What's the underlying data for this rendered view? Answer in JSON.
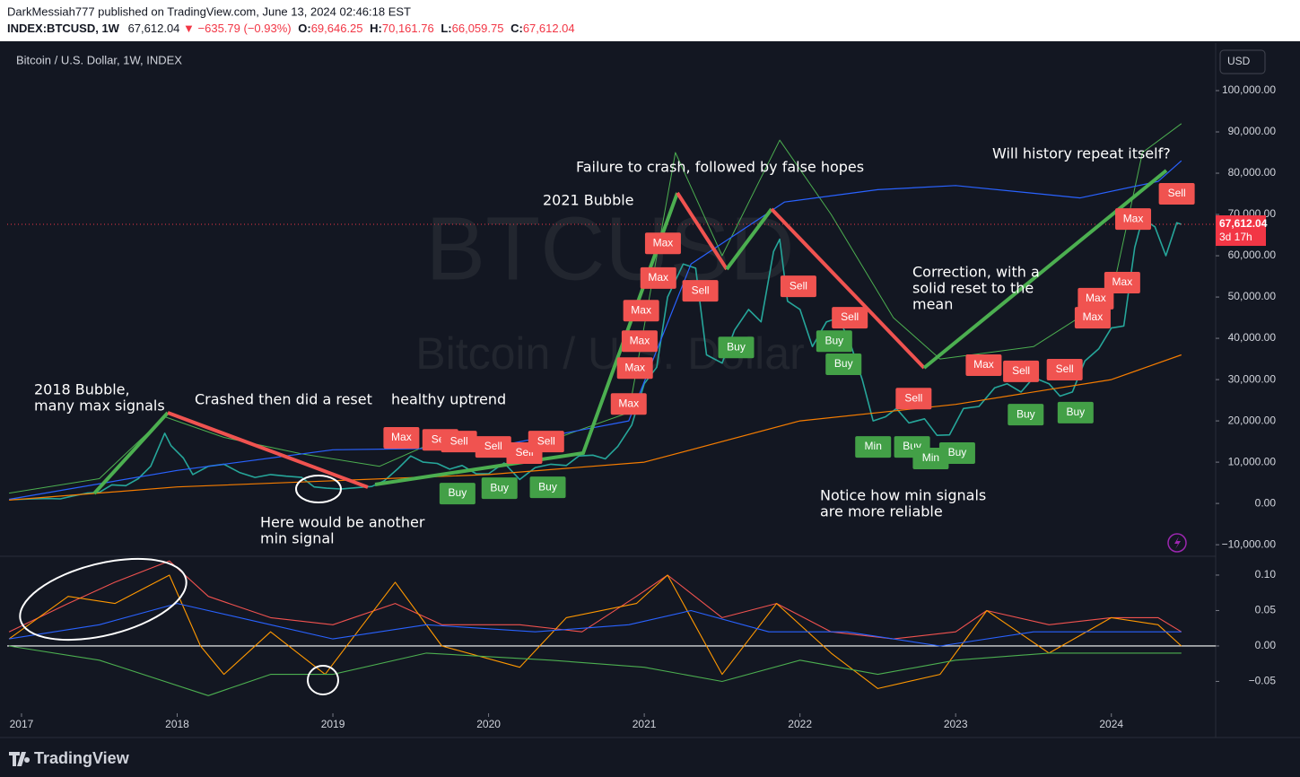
{
  "header": {
    "publisher": "DarkMessiah777 published on TradingView.com, June 13, 2024 02:46:18 EST",
    "symbol": "INDEX:BTCUSD, 1W",
    "last": "67,612.04",
    "change": "▼ −635.79 (−0.93%)",
    "ohlc": [
      {
        "key": "O:",
        "value": "69,646.25"
      },
      {
        "key": "H:",
        "value": "70,161.76"
      },
      {
        "key": "L:",
        "value": "66,059.75"
      },
      {
        "key": "C:",
        "value": "67,612.04"
      }
    ]
  },
  "legend": "Bitcoin / U.S. Dollar, 1W, INDEX",
  "currency": "USD",
  "watermark": {
    "symbol": "BTCUSD",
    "description": "Bitcoin / U.S. Dollar"
  },
  "countdown": "3d 17h",
  "brand": "TradingView",
  "annotations": [
    "2018 Bubble,",
    "many max signals",
    "Crashed then did a reset",
    "healthy uptrend",
    "Here would be another",
    "min signal",
    "2021 Bubble",
    "Failure to crash, followed by false hopes",
    "Correction, with a",
    "solid reset to the",
    "mean",
    "Notice how min signals",
    "are more reliable",
    "Will history repeat itself?"
  ],
  "chart_data": [
    {
      "type": "line",
      "xlim": [
        2016.908,
        2024.67
      ],
      "ylim": [
        -12800,
        110000
      ],
      "yticks": [
        {
          "value": 100000,
          "label": "100,000.00"
        },
        {
          "value": 90000,
          "label": "90,000.00"
        },
        {
          "value": 80000,
          "label": "80,000.00"
        },
        {
          "value": 70000,
          "label": "70,000.00"
        },
        {
          "value": 60000,
          "label": "60,000.00"
        },
        {
          "value": 50000,
          "label": "50,000.00"
        },
        {
          "value": 40000,
          "label": "40,000.00"
        },
        {
          "value": 30000,
          "label": "30,000.00"
        },
        {
          "value": 20000,
          "label": "20,000.00"
        },
        {
          "value": 10000,
          "label": "10,000.00"
        },
        {
          "value": 0,
          "label": "0.00"
        },
        {
          "value": -10000,
          "label": "−10,000.00"
        }
      ],
      "last_price": {
        "value": 67612.04,
        "label": "67,612.04",
        "color": "#f23645"
      },
      "series": [
        {
          "color": "#26a69a",
          "width": 1.6,
          "x": [
            2016.95,
            2017.0,
            2017.08,
            2017.17,
            2017.25,
            2017.33,
            2017.42,
            2017.5,
            2017.58,
            2017.67,
            2017.75,
            2017.83,
            2017.92,
            2017.96,
            2018.04,
            2018.1,
            2018.2,
            2018.3,
            2018.4,
            2018.5,
            2018.6,
            2018.7,
            2018.8,
            2018.88,
            2018.96,
            2019.05,
            2019.15,
            2019.25,
            2019.33,
            2019.42,
            2019.5,
            2019.58,
            2019.67,
            2019.75,
            2019.83,
            2019.92,
            2020.0,
            2020.1,
            2020.2,
            2020.3,
            2020.4,
            2020.5,
            2020.58,
            2020.67,
            2020.75,
            2020.83,
            2020.92,
            2021.0,
            2021.08,
            2021.15,
            2021.25,
            2021.33,
            2021.4,
            2021.5,
            2021.58,
            2021.67,
            2021.75,
            2021.83,
            2021.87,
            2021.92,
            2022.0,
            2022.08,
            2022.17,
            2022.25,
            2022.33,
            2022.4,
            2022.47,
            2022.55,
            2022.62,
            2022.7,
            2022.8,
            2022.88,
            2022.96,
            2023.05,
            2023.15,
            2023.25,
            2023.33,
            2023.42,
            2023.5,
            2023.6,
            2023.67,
            2023.75,
            2023.83,
            2023.92,
            2024.0,
            2024.08,
            2024.15,
            2024.2,
            2024.28,
            2024.35,
            2024.42,
            2024.45
          ],
          "values": [
            950,
            1000,
            1100,
            1200,
            1100,
            1800,
            2500,
            2700,
            4500,
            4300,
            6000,
            9000,
            17000,
            14000,
            11000,
            7000,
            9000,
            9500,
            7500,
            6300,
            7000,
            6600,
            6300,
            4000,
            3700,
            3500,
            3800,
            4100,
            5500,
            8500,
            11500,
            10000,
            9700,
            8300,
            9200,
            7200,
            7200,
            9800,
            5800,
            8700,
            9500,
            9200,
            11500,
            11700,
            10800,
            13800,
            19000,
            29000,
            33000,
            50000,
            58000,
            57000,
            36000,
            34000,
            42000,
            47000,
            44000,
            61000,
            64000,
            49000,
            47000,
            38000,
            44000,
            45000,
            38000,
            30000,
            20000,
            21000,
            23000,
            19500,
            20500,
            16500,
            16600,
            23000,
            23500,
            28000,
            29000,
            27000,
            30500,
            29000,
            26000,
            27000,
            34500,
            37500,
            42500,
            43000,
            62000,
            69000,
            67000,
            60000,
            68000,
            67612.04
          ]
        },
        {
          "color": "#4caf50",
          "width": 1,
          "x": [
            2016.92,
            2017.5,
            2017.92,
            2018.3,
            2018.8,
            2019.3,
            2019.6,
            2020.3,
            2020.9,
            2021.2,
            2021.5,
            2021.87,
            2022.2,
            2022.6,
            2022.9,
            2023.5,
            2024.0,
            2024.2,
            2024.45
          ],
          "values": [
            2500,
            6000,
            21000,
            16000,
            12000,
            9000,
            14000,
            14000,
            22000,
            85000,
            60000,
            88000,
            70000,
            45000,
            35000,
            38000,
            50000,
            85000,
            92000
          ]
        },
        {
          "color": "#2962ff",
          "width": 1.2,
          "x": [
            2016.92,
            2018.0,
            2019.0,
            2020.0,
            2020.9,
            2021.3,
            2021.9,
            2022.5,
            2023.0,
            2023.8,
            2024.3,
            2024.45
          ],
          "values": [
            1000,
            8000,
            13000,
            13500,
            20000,
            58000,
            73000,
            76000,
            77000,
            74000,
            78000,
            83000
          ]
        },
        {
          "color": "#f57c00",
          "width": 1.2,
          "x": [
            2016.92,
            2018.0,
            2019.0,
            2020.0,
            2021.0,
            2022.0,
            2023.0,
            2024.0,
            2024.45
          ],
          "values": [
            800,
            4000,
            5500,
            7000,
            10000,
            20000,
            24000,
            30000,
            36000
          ]
        }
      ],
      "signals": [
        {
          "label": "Max",
          "x": 2019.44,
          "y": 15900
        },
        {
          "label": "Sell",
          "x": 2019.69,
          "y": 15400
        },
        {
          "label": "Sell",
          "x": 2019.81,
          "y": 15000
        },
        {
          "label": "Sell",
          "x": 2020.03,
          "y": 13700
        },
        {
          "label": "Sell",
          "x": 2020.23,
          "y": 12200
        },
        {
          "label": "Sell",
          "x": 2020.37,
          "y": 15000
        },
        {
          "label": "Buy",
          "x": 2019.8,
          "y": 2400
        },
        {
          "label": "Buy",
          "x": 2020.07,
          "y": 3700
        },
        {
          "label": "Buy",
          "x": 2020.38,
          "y": 3900
        },
        {
          "label": "Max",
          "x": 2020.9,
          "y": 24100
        },
        {
          "label": "Max",
          "x": 2020.94,
          "y": 32800
        },
        {
          "label": "Max",
          "x": 2020.97,
          "y": 39300
        },
        {
          "label": "Max",
          "x": 2020.98,
          "y": 46700
        },
        {
          "label": "Max",
          "x": 2021.09,
          "y": 54600
        },
        {
          "label": "Max",
          "x": 2021.12,
          "y": 63000
        },
        {
          "label": "Sell",
          "x": 2021.36,
          "y": 51500
        },
        {
          "label": "Buy",
          "x": 2021.59,
          "y": 37800
        },
        {
          "label": "Sell",
          "x": 2021.99,
          "y": 52600
        },
        {
          "label": "Sell",
          "x": 2022.32,
          "y": 45000
        },
        {
          "label": "Buy",
          "x": 2022.22,
          "y": 39300
        },
        {
          "label": "Buy",
          "x": 2022.28,
          "y": 33700
        },
        {
          "label": "Sell",
          "x": 2022.73,
          "y": 25400
        },
        {
          "label": "Min",
          "x": 2022.47,
          "y": 13700
        },
        {
          "label": "Buy",
          "x": 2022.72,
          "y": 13700
        },
        {
          "label": "Min",
          "x": 2022.84,
          "y": 10900
        },
        {
          "label": "Buy",
          "x": 2023.01,
          "y": 12200
        },
        {
          "label": "Max",
          "x": 2023.18,
          "y": 33500
        },
        {
          "label": "Sell",
          "x": 2023.42,
          "y": 32000
        },
        {
          "label": "Sell",
          "x": 2023.7,
          "y": 32400
        },
        {
          "label": "Buy",
          "x": 2023.45,
          "y": 21500
        },
        {
          "label": "Buy",
          "x": 2023.77,
          "y": 22000
        },
        {
          "label": "Max",
          "x": 2023.88,
          "y": 45000
        },
        {
          "label": "Max",
          "x": 2023.9,
          "y": 49600
        },
        {
          "label": "Max",
          "x": 2024.07,
          "y": 53500
        },
        {
          "label": "Max",
          "x": 2024.14,
          "y": 68900
        },
        {
          "label": "Sell",
          "x": 2024.42,
          "y": 75000
        }
      ],
      "signal_colors": {
        "Max": "#f05350",
        "Sell": "#f05350",
        "Buy": "#43a047",
        "Min": "#43a047"
      }
    },
    {
      "type": "line",
      "xlim": [
        2016.908,
        2024.67
      ],
      "ylim": [
        -0.095,
        0.124
      ],
      "xticks": [
        2017,
        2018,
        2019,
        2020,
        2021,
        2022,
        2023,
        2024
      ],
      "yticks": [
        {
          "value": 0.1,
          "label": "0.10"
        },
        {
          "value": 0.05,
          "label": "0.05"
        },
        {
          "value": 0,
          "label": "0.00"
        },
        {
          "value": -0.05,
          "label": "−0.05"
        }
      ],
      "hline": {
        "value": 0,
        "color": "#ffffff"
      },
      "series": [
        {
          "color": "#f0524f",
          "width": 1.1,
          "x": [
            2016.92,
            2017.3,
            2017.6,
            2017.95,
            2018.2,
            2018.6,
            2019.0,
            2019.4,
            2019.7,
            2020.2,
            2020.6,
            2020.95,
            2021.15,
            2021.5,
            2021.85,
            2022.2,
            2022.6,
            2023.0,
            2023.2,
            2023.6,
            2024.0,
            2024.3,
            2024.45
          ],
          "values": [
            0.02,
            0.06,
            0.09,
            0.12,
            0.07,
            0.04,
            0.03,
            0.06,
            0.03,
            0.03,
            0.02,
            0.07,
            0.1,
            0.04,
            0.06,
            0.02,
            0.01,
            0.02,
            0.05,
            0.03,
            0.04,
            0.04,
            0.02
          ]
        },
        {
          "color": "#ff9800",
          "width": 1.1,
          "x": [
            2016.92,
            2017.3,
            2017.6,
            2017.95,
            2018.15,
            2018.3,
            2018.6,
            2018.95,
            2019.4,
            2019.7,
            2020.2,
            2020.5,
            2020.95,
            2021.15,
            2021.5,
            2021.85,
            2022.2,
            2022.5,
            2022.9,
            2023.2,
            2023.6,
            2024.0,
            2024.3,
            2024.45
          ],
          "values": [
            0.01,
            0.07,
            0.06,
            0.1,
            0.0,
            -0.04,
            0.02,
            -0.04,
            0.09,
            0.0,
            -0.03,
            0.04,
            0.06,
            0.1,
            -0.04,
            0.06,
            -0.01,
            -0.06,
            -0.04,
            0.05,
            -0.01,
            0.04,
            0.03,
            0.0
          ]
        },
        {
          "color": "#2962ff",
          "width": 1.1,
          "x": [
            2016.92,
            2017.5,
            2018.0,
            2018.6,
            2019.0,
            2019.6,
            2020.3,
            2020.9,
            2021.3,
            2021.8,
            2022.3,
            2022.9,
            2023.5,
            2024.1,
            2024.45
          ],
          "values": [
            0.01,
            0.03,
            0.06,
            0.03,
            0.01,
            0.03,
            0.02,
            0.03,
            0.05,
            0.02,
            0.02,
            0.0,
            0.02,
            0.02,
            0.02
          ]
        },
        {
          "color": "#4caf50",
          "width": 1.1,
          "x": [
            2016.92,
            2017.5,
            2018.2,
            2018.6,
            2019.0,
            2019.6,
            2020.4,
            2021.0,
            2021.5,
            2022.0,
            2022.5,
            2023.0,
            2023.6,
            2024.1,
            2024.45
          ],
          "values": [
            0.0,
            -0.02,
            -0.07,
            -0.04,
            -0.04,
            -0.01,
            -0.02,
            -0.03,
            -0.05,
            -0.02,
            -0.04,
            -0.02,
            -0.01,
            -0.01,
            -0.01
          ]
        }
      ]
    }
  ]
}
